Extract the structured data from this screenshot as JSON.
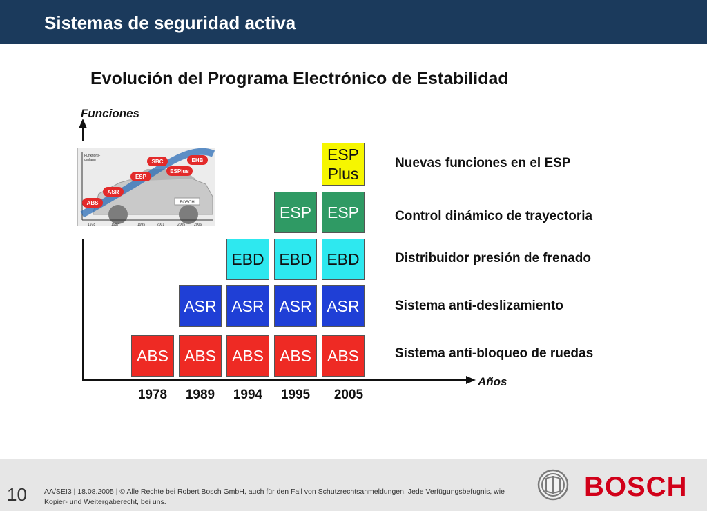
{
  "header": {
    "title": "Sistemas de seguridad activa"
  },
  "slide": {
    "title": "Evolución del Programa Electrónico de Estabilidad"
  },
  "axes": {
    "y_label": "Funciones",
    "x_label": "Años"
  },
  "years": [
    "1978",
    "1989",
    "1994",
    "1995",
    "2005"
  ],
  "boxes": {
    "abs": "ABS",
    "asr": "ASR",
    "ebd": "EBD",
    "esp": "ESP",
    "esp_plus_line1": "ESP",
    "esp_plus_line2": "Plus"
  },
  "functions": [
    "Nuevas funciones en el ESP",
    "Control dinámico de trayectoria",
    "Distribuidor  presión de frenado",
    "Sistema anti-deslizamiento",
    "Sistema anti-bloqueo de ruedas"
  ],
  "inset": {
    "y_label_line1": "Funktions-",
    "y_label_line2": "umfang",
    "badges": [
      "ABS",
      "ASR",
      "ESP",
      "SBC",
      "EHB",
      "ESPlus"
    ],
    "badge_color": "#e32a2a",
    "years": [
      "1978",
      "1987",
      "1995",
      "2001",
      "2005",
      "2006"
    ],
    "plate_text": "BOSCH"
  },
  "colors": {
    "header_bg": "#1b3a5c",
    "abs": "#ee2a24",
    "asr": "#1f3fd6",
    "ebd": "#2ee8ef",
    "esp": "#2f9a64",
    "esp_plus": "#f6f600",
    "bosch_red": "#d10019"
  },
  "footer": {
    "page_number": "10",
    "legal": "AA/SEI3 | 18.08.2005 | © Alle Rechte bei Robert Bosch GmbH, auch für den Fall von Schutzrechtsanmeldungen. Jede Verfügungsbefugnis, wie Kopier- und Weitergaberecht, bei uns.",
    "brand": "BOSCH",
    "emblem_icon": "bosch-armature-icon"
  }
}
